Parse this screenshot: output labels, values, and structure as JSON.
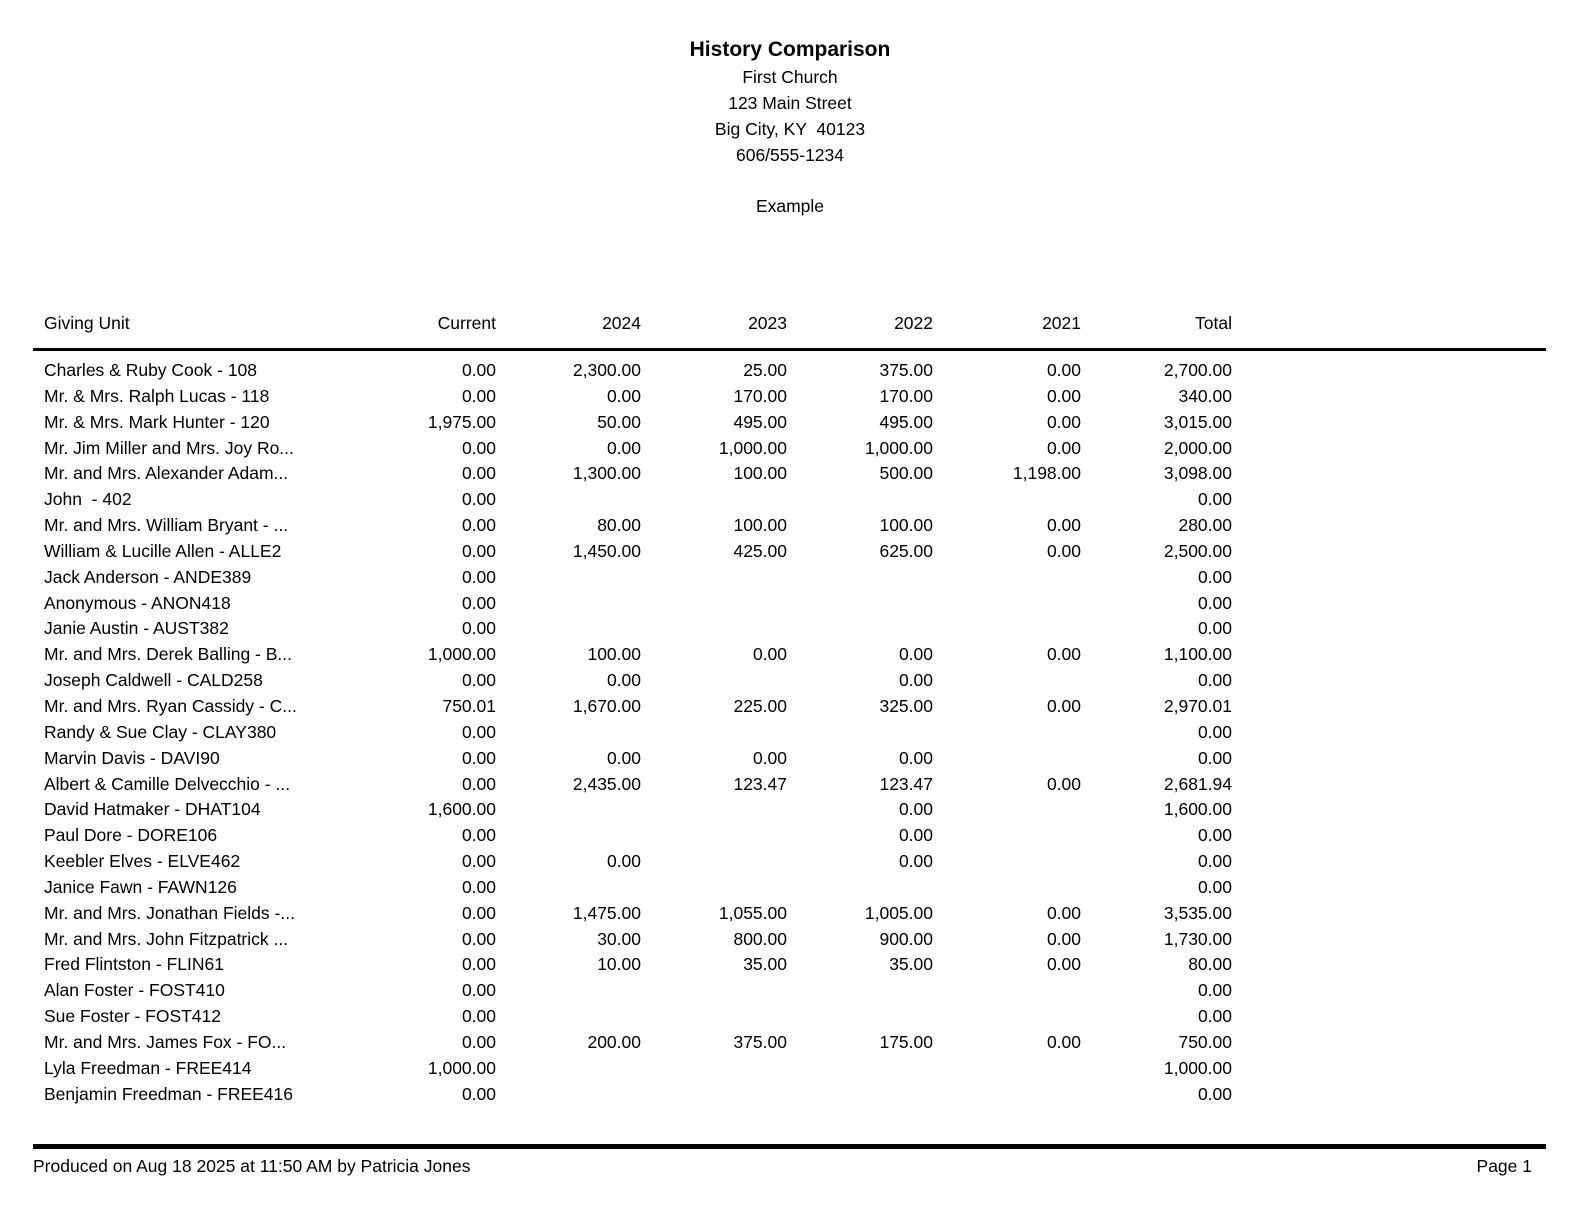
{
  "report": {
    "title": "History Comparison",
    "org_name": "First Church",
    "address_line1": "123 Main Street",
    "address_line2": "Big City, KY  40123",
    "phone": "606/555-1234",
    "subtitle": "Example"
  },
  "table": {
    "columns": [
      "Giving Unit",
      "Current",
      "2024",
      "2023",
      "2022",
      "2021",
      "Total"
    ],
    "rows": [
      {
        "name": "Charles & Ruby Cook - 108",
        "values": [
          "0.00",
          "2,300.00",
          "25.00",
          "375.00",
          "0.00",
          "2,700.00"
        ]
      },
      {
        "name": "Mr. & Mrs. Ralph Lucas - 118",
        "values": [
          "0.00",
          "0.00",
          "170.00",
          "170.00",
          "0.00",
          "340.00"
        ]
      },
      {
        "name": "Mr. & Mrs. Mark Hunter - 120",
        "values": [
          "1,975.00",
          "50.00",
          "495.00",
          "495.00",
          "0.00",
          "3,015.00"
        ]
      },
      {
        "name": "Mr. Jim Miller and Mrs. Joy Ro...",
        "values": [
          "0.00",
          "0.00",
          "1,000.00",
          "1,000.00",
          "0.00",
          "2,000.00"
        ]
      },
      {
        "name": "Mr. and Mrs. Alexander Adam...",
        "values": [
          "0.00",
          "1,300.00",
          "100.00",
          "500.00",
          "1,198.00",
          "3,098.00"
        ]
      },
      {
        "name": "John  - 402",
        "values": [
          "0.00",
          "",
          "",
          "",
          "",
          "0.00"
        ]
      },
      {
        "name": "Mr. and Mrs. William Bryant - ...",
        "values": [
          "0.00",
          "80.00",
          "100.00",
          "100.00",
          "0.00",
          "280.00"
        ]
      },
      {
        "name": "William & Lucille Allen - ALLE2",
        "values": [
          "0.00",
          "1,450.00",
          "425.00",
          "625.00",
          "0.00",
          "2,500.00"
        ]
      },
      {
        "name": "Jack Anderson - ANDE389",
        "values": [
          "0.00",
          "",
          "",
          "",
          "",
          "0.00"
        ]
      },
      {
        "name": "Anonymous - ANON418",
        "values": [
          "0.00",
          "",
          "",
          "",
          "",
          "0.00"
        ]
      },
      {
        "name": "Janie Austin - AUST382",
        "values": [
          "0.00",
          "",
          "",
          "",
          "",
          "0.00"
        ]
      },
      {
        "name": "Mr. and Mrs. Derek Balling - B...",
        "values": [
          "1,000.00",
          "100.00",
          "0.00",
          "0.00",
          "0.00",
          "1,100.00"
        ]
      },
      {
        "name": "Joseph Caldwell - CALD258",
        "values": [
          "0.00",
          "0.00",
          "",
          "0.00",
          "",
          "0.00"
        ]
      },
      {
        "name": "Mr. and Mrs. Ryan Cassidy - C...",
        "values": [
          "750.01",
          "1,670.00",
          "225.00",
          "325.00",
          "0.00",
          "2,970.01"
        ]
      },
      {
        "name": "Randy & Sue Clay - CLAY380",
        "values": [
          "0.00",
          "",
          "",
          "",
          "",
          "0.00"
        ]
      },
      {
        "name": "Marvin Davis - DAVI90",
        "values": [
          "0.00",
          "0.00",
          "0.00",
          "0.00",
          "",
          "0.00"
        ]
      },
      {
        "name": "Albert & Camille Delvecchio - ...",
        "values": [
          "0.00",
          "2,435.00",
          "123.47",
          "123.47",
          "0.00",
          "2,681.94"
        ]
      },
      {
        "name": "David Hatmaker - DHAT104",
        "values": [
          "1,600.00",
          "",
          "",
          "0.00",
          "",
          "1,600.00"
        ]
      },
      {
        "name": "Paul Dore - DORE106",
        "values": [
          "0.00",
          "",
          "",
          "0.00",
          "",
          "0.00"
        ]
      },
      {
        "name": "Keebler Elves - ELVE462",
        "values": [
          "0.00",
          "0.00",
          "",
          "0.00",
          "",
          "0.00"
        ]
      },
      {
        "name": "Janice Fawn - FAWN126",
        "values": [
          "0.00",
          "",
          "",
          "",
          "",
          "0.00"
        ]
      },
      {
        "name": "Mr. and Mrs. Jonathan Fields -...",
        "values": [
          "0.00",
          "1,475.00",
          "1,055.00",
          "1,005.00",
          "0.00",
          "3,535.00"
        ]
      },
      {
        "name": "Mr. and Mrs. John Fitzpatrick ...",
        "values": [
          "0.00",
          "30.00",
          "800.00",
          "900.00",
          "0.00",
          "1,730.00"
        ]
      },
      {
        "name": "Fred Flintston - FLIN61",
        "values": [
          "0.00",
          "10.00",
          "35.00",
          "35.00",
          "0.00",
          "80.00"
        ]
      },
      {
        "name": "Alan Foster - FOST410",
        "values": [
          "0.00",
          "",
          "",
          "",
          "",
          "0.00"
        ]
      },
      {
        "name": "Sue Foster - FOST412",
        "values": [
          "0.00",
          "",
          "",
          "",
          "",
          "0.00"
        ]
      },
      {
        "name": "Mr. and Mrs. James Fox - FO...",
        "values": [
          "0.00",
          "200.00",
          "375.00",
          "175.00",
          "0.00",
          "750.00"
        ]
      },
      {
        "name": "Lyla Freedman - FREE414",
        "values": [
          "1,000.00",
          "",
          "",
          "",
          "",
          "1,000.00"
        ]
      },
      {
        "name": "Benjamin Freedman - FREE416",
        "values": [
          "0.00",
          "",
          "",
          "",
          "",
          "0.00"
        ]
      }
    ]
  },
  "footer": {
    "produced": "Produced on Aug 18 2025 at 11:50 AM by Patricia Jones",
    "page": "Page 1"
  }
}
